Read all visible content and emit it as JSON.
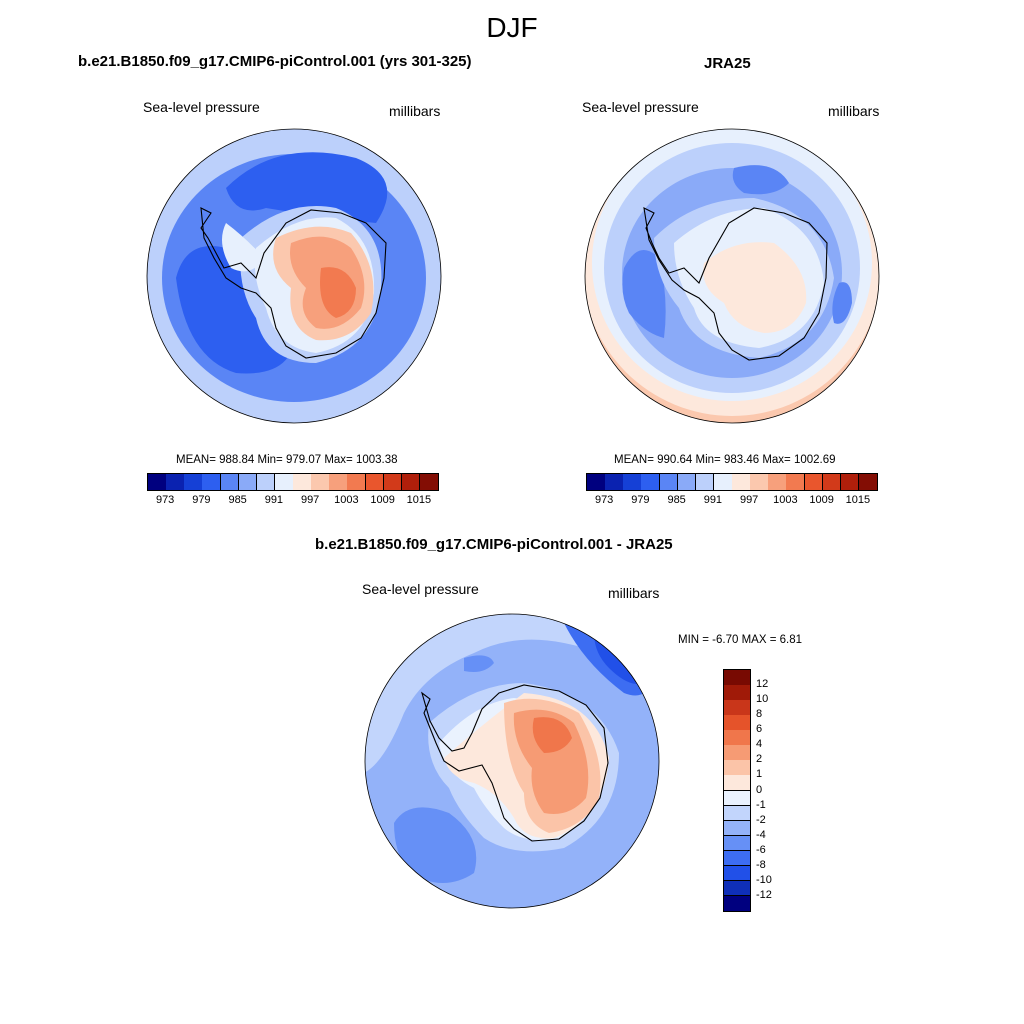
{
  "figure": {
    "title": "DJF"
  },
  "colors": {
    "scale": [
      "#00007f",
      "#0a22b0",
      "#1540d6",
      "#2d5ff0",
      "#5a85f5",
      "#8aaaf8",
      "#bcd0fb",
      "#e7f0fd",
      "#fde8dc",
      "#fbc8ae",
      "#f7a07c",
      "#f27a50",
      "#e9562d",
      "#d23a1a",
      "#b01f0b",
      "#830d04"
    ],
    "diff_scale": [
      "#00007f",
      "#0f2fb8",
      "#2150e8",
      "#3d6df2",
      "#6690f6",
      "#93b2f9",
      "#c2d5fc",
      "#eaf2fe",
      "#fde8dc",
      "#fbc4a8",
      "#f69b74",
      "#f0764b",
      "#e5532a",
      "#c9361a",
      "#a01a08",
      "#780a02"
    ],
    "coast": "#000000"
  },
  "panels": [
    {
      "id": "model",
      "title": "b.e21.B1850.f09_g17.CMIP6-piControl.001 (yrs 301-325)",
      "variable": "Sea-level pressure",
      "units": "millibars",
      "stats": "MEAN= 988.84  Min= 979.07  Max= 1003.38",
      "colorbar_ticks": [
        "973",
        "979",
        "985",
        "991",
        "997",
        "1003",
        "1009",
        "1015"
      ]
    },
    {
      "id": "obs",
      "title": "JRA25",
      "variable": "Sea-level pressure",
      "units": "millibars",
      "stats": "MEAN= 990.64  Min= 983.46  Max= 1002.69",
      "colorbar_ticks": [
        "973",
        "979",
        "985",
        "991",
        "997",
        "1003",
        "1009",
        "1015"
      ]
    },
    {
      "id": "diff",
      "title": "b.e21.B1850.f09_g17.CMIP6-piControl.001 - JRA25",
      "variable": "Sea-level pressure",
      "units": "millibars",
      "stats": "MIN =  -6.70 MAX =   6.81",
      "colorbar_ticks": [
        "12",
        "10",
        "8",
        "6",
        "4",
        "2",
        "1",
        "0",
        "-1",
        "-2",
        "-4",
        "-6",
        "-8",
        "-10",
        "-12"
      ]
    }
  ]
}
